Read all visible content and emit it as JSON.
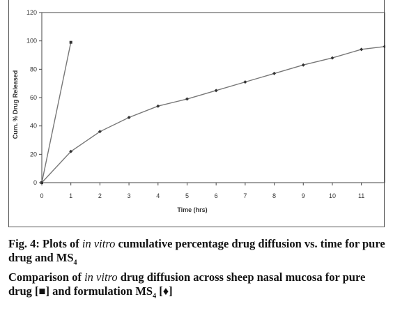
{
  "chart_data": {
    "type": "line",
    "xlabel": "Time (hrs)",
    "ylabel": "Cum. % Drug Released",
    "xlim": [
      0,
      11.8
    ],
    "ylim": [
      0,
      120
    ],
    "x_ticks": [
      0,
      1,
      2,
      3,
      4,
      5,
      6,
      7,
      8,
      9,
      10,
      11
    ],
    "y_ticks": [
      0,
      20,
      40,
      60,
      80,
      100,
      120
    ],
    "grid": false,
    "series": [
      {
        "name": "pure drug",
        "marker": "square",
        "x": [
          0,
          1
        ],
        "y": [
          0,
          99
        ]
      },
      {
        "name": "formulation MS4",
        "marker": "diamond",
        "x": [
          0,
          1,
          2,
          3,
          4,
          5,
          6,
          7,
          8,
          9,
          10,
          11,
          11.8
        ],
        "y": [
          0,
          22,
          36,
          46,
          54,
          59,
          65,
          71,
          77,
          83,
          88,
          94,
          96
        ]
      }
    ]
  },
  "caption": {
    "fig_label": "Fig. 4:",
    "line1_a": " Plots of ",
    "line1_it": "in vitro",
    "line1_b": " cumulative percentage drug diffusion vs. time for pure drug and MS",
    "line1_sub": "4",
    "line2_a": "Comparison of ",
    "line2_it": "in vitro",
    "line2_b": " drug diffusion across sheep nasal mucosa for pure drug [■] and formulation MS",
    "line2_sub": "4",
    "line2_c": " [♦]"
  }
}
